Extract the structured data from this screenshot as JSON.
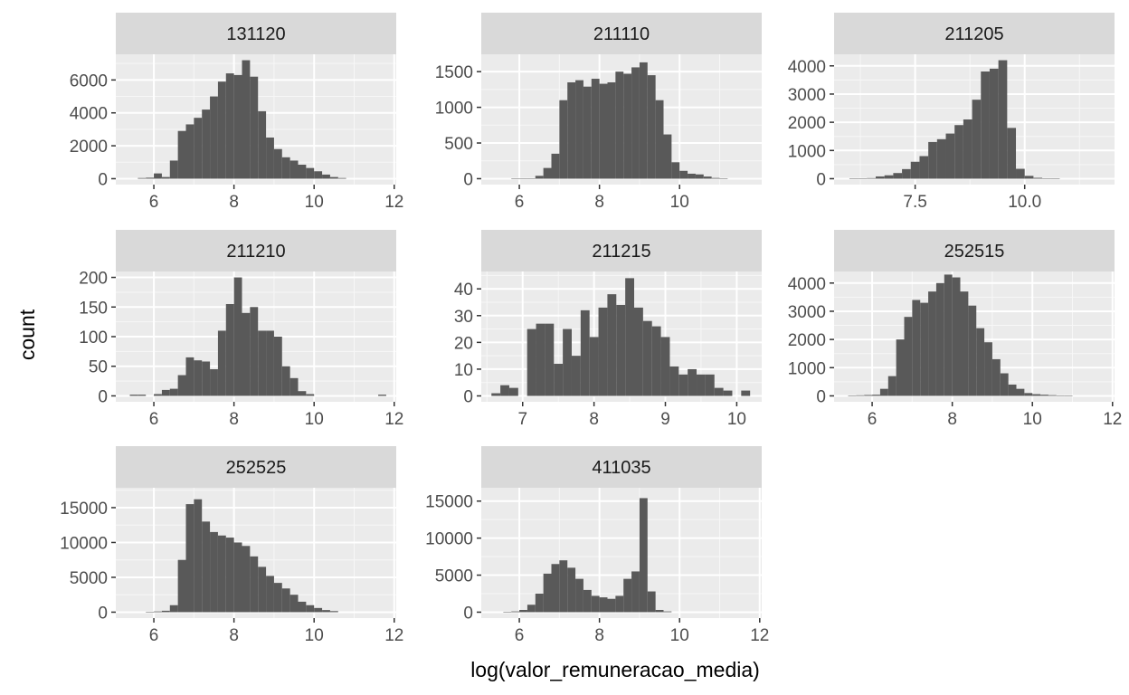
{
  "xlabel": "log(valor_remuneracao_media)",
  "ylabel": "count",
  "chart_data": [
    {
      "type": "bar",
      "title": "131120",
      "xlim": [
        5.05,
        12.05
      ],
      "ylim": [
        -360,
        7560
      ],
      "xticks": [
        6,
        8,
        10,
        12
      ],
      "xtick_labels": [
        "6",
        "8",
        "10",
        "12"
      ],
      "yticks": [
        0,
        2000,
        4000,
        6000
      ],
      "ytick_labels": [
        "0",
        "2000",
        "4000",
        "6000"
      ],
      "bin_width": 0.2,
      "bins": [
        {
          "x": 5.7,
          "count": 40
        },
        {
          "x": 5.9,
          "count": 60
        },
        {
          "x": 6.1,
          "count": 320
        },
        {
          "x": 6.3,
          "count": 100
        },
        {
          "x": 6.5,
          "count": 1100
        },
        {
          "x": 6.7,
          "count": 2900
        },
        {
          "x": 6.9,
          "count": 3300
        },
        {
          "x": 7.1,
          "count": 3700
        },
        {
          "x": 7.3,
          "count": 4200
        },
        {
          "x": 7.5,
          "count": 5000
        },
        {
          "x": 7.7,
          "count": 5900
        },
        {
          "x": 7.9,
          "count": 6400
        },
        {
          "x": 8.1,
          "count": 6300
        },
        {
          "x": 8.3,
          "count": 7200
        },
        {
          "x": 8.5,
          "count": 6200
        },
        {
          "x": 8.7,
          "count": 4100
        },
        {
          "x": 8.9,
          "count": 2500
        },
        {
          "x": 9.1,
          "count": 1800
        },
        {
          "x": 9.3,
          "count": 1300
        },
        {
          "x": 9.5,
          "count": 1100
        },
        {
          "x": 9.7,
          "count": 850
        },
        {
          "x": 9.9,
          "count": 650
        },
        {
          "x": 10.1,
          "count": 450
        },
        {
          "x": 10.3,
          "count": 250
        },
        {
          "x": 10.5,
          "count": 100
        },
        {
          "x": 10.7,
          "count": 40
        }
      ]
    },
    {
      "type": "bar",
      "title": "211110",
      "xlim": [
        5.05,
        12.05
      ],
      "ylim": [
        -83,
        1743
      ],
      "xticks": [
        6,
        8,
        10
      ],
      "xtick_labels": [
        "6",
        "8",
        "10"
      ],
      "yticks": [
        0,
        500,
        1000,
        1500
      ],
      "ytick_labels": [
        "0",
        "500",
        "1000",
        "1500"
      ],
      "bin_width": 0.2,
      "bins": [
        {
          "x": 5.9,
          "count": 5
        },
        {
          "x": 6.1,
          "count": 5
        },
        {
          "x": 6.3,
          "count": 5
        },
        {
          "x": 6.5,
          "count": 40
        },
        {
          "x": 6.7,
          "count": 150
        },
        {
          "x": 6.9,
          "count": 350
        },
        {
          "x": 7.1,
          "count": 1100
        },
        {
          "x": 7.3,
          "count": 1350
        },
        {
          "x": 7.5,
          "count": 1380
        },
        {
          "x": 7.7,
          "count": 1290
        },
        {
          "x": 7.9,
          "count": 1400
        },
        {
          "x": 8.1,
          "count": 1330
        },
        {
          "x": 8.3,
          "count": 1350
        },
        {
          "x": 8.5,
          "count": 1500
        },
        {
          "x": 8.7,
          "count": 1470
        },
        {
          "x": 8.9,
          "count": 1560
        },
        {
          "x": 9.1,
          "count": 1630
        },
        {
          "x": 9.3,
          "count": 1450
        },
        {
          "x": 9.5,
          "count": 1100
        },
        {
          "x": 9.7,
          "count": 620
        },
        {
          "x": 9.9,
          "count": 230
        },
        {
          "x": 10.1,
          "count": 110
        },
        {
          "x": 10.3,
          "count": 70
        },
        {
          "x": 10.5,
          "count": 60
        },
        {
          "x": 10.7,
          "count": 30
        },
        {
          "x": 10.9,
          "count": 10
        },
        {
          "x": 11.1,
          "count": 5
        }
      ]
    },
    {
      "type": "bar",
      "title": "211205",
      "xlim": [
        5.65,
        12.05
      ],
      "ylim": [
        -210,
        4410
      ],
      "xticks": [
        7.5,
        10.0
      ],
      "xtick_labels": [
        "7.5",
        "10.0"
      ],
      "yticks": [
        0,
        1000,
        2000,
        3000,
        4000
      ],
      "ytick_labels": [
        "0",
        "1000",
        "2000",
        "3000",
        "4000"
      ],
      "bin_width": 0.2,
      "bins": [
        {
          "x": 6.1,
          "count": 5
        },
        {
          "x": 6.3,
          "count": 10
        },
        {
          "x": 6.5,
          "count": 20
        },
        {
          "x": 6.7,
          "count": 80
        },
        {
          "x": 6.9,
          "count": 120
        },
        {
          "x": 7.1,
          "count": 200
        },
        {
          "x": 7.3,
          "count": 340
        },
        {
          "x": 7.5,
          "count": 600
        },
        {
          "x": 7.7,
          "count": 800
        },
        {
          "x": 7.9,
          "count": 1300
        },
        {
          "x": 8.1,
          "count": 1400
        },
        {
          "x": 8.3,
          "count": 1600
        },
        {
          "x": 8.5,
          "count": 1900
        },
        {
          "x": 8.7,
          "count": 2100
        },
        {
          "x": 8.9,
          "count": 2800
        },
        {
          "x": 9.1,
          "count": 3800
        },
        {
          "x": 9.3,
          "count": 3900
        },
        {
          "x": 9.5,
          "count": 4200
        },
        {
          "x": 9.7,
          "count": 1800
        },
        {
          "x": 9.9,
          "count": 350
        },
        {
          "x": 10.1,
          "count": 100
        },
        {
          "x": 10.3,
          "count": 30
        },
        {
          "x": 10.5,
          "count": 10
        },
        {
          "x": 10.7,
          "count": 5
        }
      ]
    },
    {
      "type": "bar",
      "title": "211210",
      "xlim": [
        5.05,
        12.05
      ],
      "ylim": [
        -10,
        210
      ],
      "xticks": [
        6,
        8,
        10,
        12
      ],
      "xtick_labels": [
        "6",
        "8",
        "10",
        "12"
      ],
      "yticks": [
        0,
        50,
        100,
        150,
        200
      ],
      "ytick_labels": [
        "0",
        "50",
        "100",
        "150",
        "200"
      ],
      "bin_width": 0.2,
      "bins": [
        {
          "x": 5.5,
          "count": 2
        },
        {
          "x": 5.7,
          "count": 2
        },
        {
          "x": 6.1,
          "count": 3
        },
        {
          "x": 6.3,
          "count": 10
        },
        {
          "x": 6.5,
          "count": 12
        },
        {
          "x": 6.7,
          "count": 35
        },
        {
          "x": 6.9,
          "count": 65
        },
        {
          "x": 7.1,
          "count": 60
        },
        {
          "x": 7.3,
          "count": 58
        },
        {
          "x": 7.5,
          "count": 45
        },
        {
          "x": 7.7,
          "count": 110
        },
        {
          "x": 7.9,
          "count": 155
        },
        {
          "x": 8.1,
          "count": 200
        },
        {
          "x": 8.3,
          "count": 140
        },
        {
          "x": 8.5,
          "count": 150
        },
        {
          "x": 8.7,
          "count": 110
        },
        {
          "x": 8.9,
          "count": 110
        },
        {
          "x": 9.1,
          "count": 100
        },
        {
          "x": 9.3,
          "count": 50
        },
        {
          "x": 9.5,
          "count": 30
        },
        {
          "x": 9.7,
          "count": 8
        },
        {
          "x": 9.9,
          "count": 3
        },
        {
          "x": 11.7,
          "count": 2
        }
      ]
    },
    {
      "type": "bar",
      "title": "211215",
      "xlim": [
        6.42,
        10.35
      ],
      "ylim": [
        -2.2,
        46.5
      ],
      "xticks": [
        7,
        8,
        9,
        10
      ],
      "xtick_labels": [
        "7",
        "8",
        "9",
        "10"
      ],
      "yticks": [
        0,
        10,
        20,
        30,
        40
      ],
      "ytick_labels": [
        "0",
        "10",
        "20",
        "30",
        "40"
      ],
      "bin_width": 0.125,
      "bins": [
        {
          "x": 6.625,
          "count": 1
        },
        {
          "x": 6.75,
          "count": 4
        },
        {
          "x": 6.875,
          "count": 3
        },
        {
          "x": 7.125,
          "count": 25
        },
        {
          "x": 7.25,
          "count": 27
        },
        {
          "x": 7.375,
          "count": 27
        },
        {
          "x": 7.5,
          "count": 12
        },
        {
          "x": 7.625,
          "count": 25
        },
        {
          "x": 7.75,
          "count": 15
        },
        {
          "x": 7.875,
          "count": 32
        },
        {
          "x": 8.0,
          "count": 22
        },
        {
          "x": 8.125,
          "count": 33
        },
        {
          "x": 8.25,
          "count": 38
        },
        {
          "x": 8.375,
          "count": 34
        },
        {
          "x": 8.5,
          "count": 44
        },
        {
          "x": 8.625,
          "count": 33
        },
        {
          "x": 8.75,
          "count": 28
        },
        {
          "x": 8.875,
          "count": 26
        },
        {
          "x": 9.0,
          "count": 22
        },
        {
          "x": 9.125,
          "count": 11
        },
        {
          "x": 9.25,
          "count": 8
        },
        {
          "x": 9.375,
          "count": 10
        },
        {
          "x": 9.5,
          "count": 8
        },
        {
          "x": 9.625,
          "count": 8
        },
        {
          "x": 9.75,
          "count": 3
        },
        {
          "x": 9.875,
          "count": 2
        },
        {
          "x": 10.125,
          "count": 2
        }
      ]
    },
    {
      "type": "bar",
      "title": "252515",
      "xlim": [
        5.05,
        12.05
      ],
      "ylim": [
        -210,
        4410
      ],
      "xticks": [
        6,
        8,
        10,
        12
      ],
      "xtick_labels": [
        "6",
        "8",
        "10",
        "12"
      ],
      "yticks": [
        0,
        1000,
        2000,
        3000,
        4000
      ],
      "ytick_labels": [
        "0",
        "1000",
        "2000",
        "3000",
        "4000"
      ],
      "bin_width": 0.2,
      "bins": [
        {
          "x": 5.5,
          "count": 10
        },
        {
          "x": 5.7,
          "count": 20
        },
        {
          "x": 5.9,
          "count": 30
        },
        {
          "x": 6.1,
          "count": 40
        },
        {
          "x": 6.3,
          "count": 250
        },
        {
          "x": 6.5,
          "count": 700
        },
        {
          "x": 6.7,
          "count": 2000
        },
        {
          "x": 6.9,
          "count": 2800
        },
        {
          "x": 7.1,
          "count": 3400
        },
        {
          "x": 7.3,
          "count": 3300
        },
        {
          "x": 7.5,
          "count": 3700
        },
        {
          "x": 7.7,
          "count": 4000
        },
        {
          "x": 7.9,
          "count": 4300
        },
        {
          "x": 8.1,
          "count": 4200
        },
        {
          "x": 8.3,
          "count": 3700
        },
        {
          "x": 8.5,
          "count": 3200
        },
        {
          "x": 8.7,
          "count": 2400
        },
        {
          "x": 8.9,
          "count": 1900
        },
        {
          "x": 9.1,
          "count": 1300
        },
        {
          "x": 9.3,
          "count": 800
        },
        {
          "x": 9.5,
          "count": 400
        },
        {
          "x": 9.7,
          "count": 250
        },
        {
          "x": 9.9,
          "count": 100
        },
        {
          "x": 10.1,
          "count": 60
        },
        {
          "x": 10.3,
          "count": 40
        },
        {
          "x": 10.5,
          "count": 25
        },
        {
          "x": 10.7,
          "count": 15
        },
        {
          "x": 10.9,
          "count": 10
        }
      ]
    },
    {
      "type": "bar",
      "title": "252525",
      "xlim": [
        5.05,
        12.05
      ],
      "ylim": [
        -850,
        17850
      ],
      "xticks": [
        6,
        8,
        10,
        12
      ],
      "xtick_labels": [
        "6",
        "8",
        "10",
        "12"
      ],
      "yticks": [
        0,
        5000,
        10000,
        15000
      ],
      "ytick_labels": [
        "0",
        "5000",
        "10000",
        "15000"
      ],
      "bin_width": 0.2,
      "bins": [
        {
          "x": 5.9,
          "count": 50
        },
        {
          "x": 6.1,
          "count": 100
        },
        {
          "x": 6.3,
          "count": 200
        },
        {
          "x": 6.5,
          "count": 1000
        },
        {
          "x": 6.7,
          "count": 7500
        },
        {
          "x": 6.9,
          "count": 15500
        },
        {
          "x": 7.1,
          "count": 16200
        },
        {
          "x": 7.3,
          "count": 13000
        },
        {
          "x": 7.5,
          "count": 11500
        },
        {
          "x": 7.7,
          "count": 11000
        },
        {
          "x": 7.9,
          "count": 10700
        },
        {
          "x": 8.1,
          "count": 10000
        },
        {
          "x": 8.3,
          "count": 9500
        },
        {
          "x": 8.5,
          "count": 8000
        },
        {
          "x": 8.7,
          "count": 6500
        },
        {
          "x": 8.9,
          "count": 5200
        },
        {
          "x": 9.1,
          "count": 4200
        },
        {
          "x": 9.3,
          "count": 3400
        },
        {
          "x": 9.5,
          "count": 2500
        },
        {
          "x": 9.7,
          "count": 1500
        },
        {
          "x": 9.9,
          "count": 1000
        },
        {
          "x": 10.1,
          "count": 600
        },
        {
          "x": 10.3,
          "count": 300
        },
        {
          "x": 10.5,
          "count": 150
        }
      ]
    },
    {
      "type": "bar",
      "title": "411035",
      "xlim": [
        5.05,
        12.05
      ],
      "ylim": [
        -800,
        16800
      ],
      "xticks": [
        6,
        8,
        10,
        12
      ],
      "xtick_labels": [
        "6",
        "8",
        "10",
        "12"
      ],
      "yticks": [
        0,
        5000,
        10000,
        15000
      ],
      "ytick_labels": [
        "0",
        "5000",
        "10000",
        "15000"
      ],
      "bin_width": 0.2,
      "bins": [
        {
          "x": 5.7,
          "count": 50
        },
        {
          "x": 5.9,
          "count": 100
        },
        {
          "x": 6.1,
          "count": 300
        },
        {
          "x": 6.3,
          "count": 1000
        },
        {
          "x": 6.5,
          "count": 2500
        },
        {
          "x": 6.7,
          "count": 5200
        },
        {
          "x": 6.9,
          "count": 6500
        },
        {
          "x": 7.1,
          "count": 7000
        },
        {
          "x": 7.3,
          "count": 6000
        },
        {
          "x": 7.5,
          "count": 4500
        },
        {
          "x": 7.7,
          "count": 3000
        },
        {
          "x": 7.9,
          "count": 2200
        },
        {
          "x": 8.1,
          "count": 2000
        },
        {
          "x": 8.3,
          "count": 1800
        },
        {
          "x": 8.5,
          "count": 2200
        },
        {
          "x": 8.7,
          "count": 4500
        },
        {
          "x": 8.9,
          "count": 5500
        },
        {
          "x": 9.1,
          "count": 15400
        },
        {
          "x": 9.3,
          "count": 2800
        },
        {
          "x": 9.5,
          "count": 300
        },
        {
          "x": 9.7,
          "count": 100
        }
      ]
    }
  ]
}
